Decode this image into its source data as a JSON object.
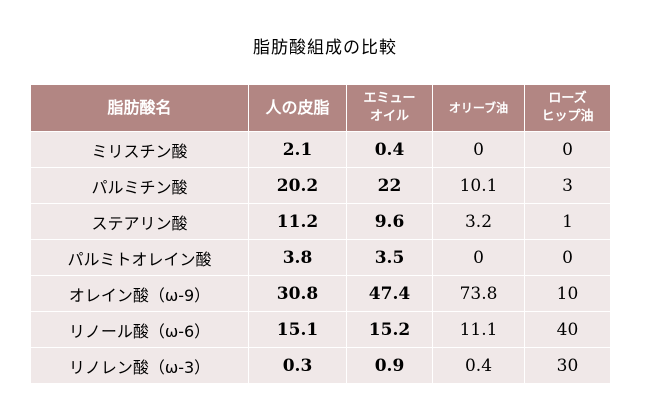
{
  "title": "脂肪酸組成の比較",
  "table": {
    "headers": [
      {
        "lines": [
          "脂肪酸名"
        ]
      },
      {
        "lines": [
          "人の皮脂"
        ]
      },
      {
        "lines": [
          "エミュー",
          "オイル"
        ]
      },
      {
        "lines": [
          "オリーブ油"
        ]
      },
      {
        "lines": [
          "ローズ",
          "ヒップ油"
        ]
      }
    ],
    "rows": [
      {
        "name": "ミリスチン酸",
        "human_sebum": "2.1",
        "emu_oil": "0.4",
        "olive_oil": "0",
        "rosehip_oil": "0"
      },
      {
        "name": "パルミチン酸",
        "human_sebum": "20.2",
        "emu_oil": "22",
        "olive_oil": "10.1",
        "rosehip_oil": "3"
      },
      {
        "name": "ステアリン酸",
        "human_sebum": "11.2",
        "emu_oil": "9.6",
        "olive_oil": "3.2",
        "rosehip_oil": "1"
      },
      {
        "name": "パルミトオレイン酸",
        "human_sebum": "3.8",
        "emu_oil": "3.5",
        "olive_oil": "0",
        "rosehip_oil": "0"
      },
      {
        "name": "オレイン酸（ω‐9）",
        "human_sebum": "30.8",
        "emu_oil": "47.4",
        "olive_oil": "73.8",
        "rosehip_oil": "10"
      },
      {
        "name": "リノール酸（ω‐6）",
        "human_sebum": "15.1",
        "emu_oil": "15.2",
        "olive_oil": "11.1",
        "rosehip_oil": "40"
      },
      {
        "name": "リノレン酸（ω‐3）",
        "human_sebum": "0.3",
        "emu_oil": "0.9",
        "olive_oil": "0.4",
        "rosehip_oil": "30"
      }
    ]
  },
  "colors": {
    "header_background": "#b28683",
    "header_text": "#ffffff",
    "row_background": "#f0e8e8",
    "page_background": "#ffffff"
  }
}
